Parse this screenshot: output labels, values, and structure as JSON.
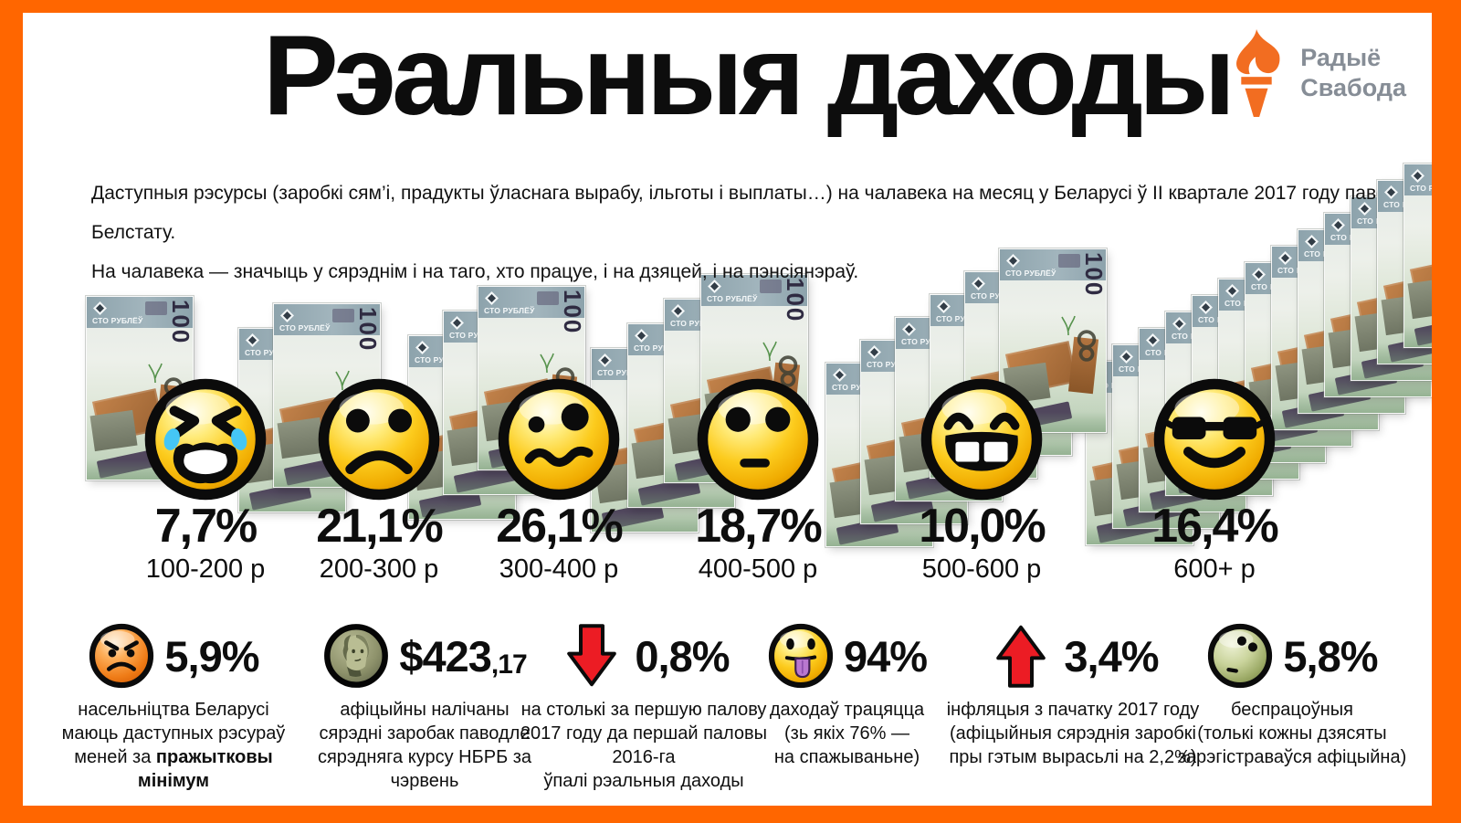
{
  "brand": {
    "line1": "Радыё",
    "line2": "Свабода",
    "torch_color": "#f26d21",
    "text_color": "#868d96"
  },
  "frame_color": "#ff6600",
  "header": {
    "title": "Рэальныя даходы"
  },
  "intro": {
    "line1": "Даступныя рэсурсы (заробкі сям’і, прадукты ўласнага вырабу, ільготы і выплаты…) на чалавека на месяц у Беларусі ў II квартале 2017 году паводле Белстату.",
    "line2": "На чалавека — значыць у сярэднім і на таго, хто працуе, і на дзяцей, і на пэнсіянэраў."
  },
  "banknote": {
    "denomination": "100",
    "label": "СТО РУБЛЁЎ"
  },
  "chart_data": {
    "type": "bar",
    "title": "Рэальныя даходы",
    "subtitle": [
      "Даступныя рэсурсы (заробкі сям’і, прадукты ўласнага вырабу, ільготы і выплаты…) на чалавека на месяц у Беларусі ў II квартале 2017 году паводле Белстату.",
      "На чалавека — значыць у сярэднім і на таго, хто працуе, і на дзяцей, і на пэнсіянэраў."
    ],
    "categories": [
      "100-200 р",
      "200-300 р",
      "300-400 р",
      "400-500 р",
      "500-600 р",
      "600+ р"
    ],
    "values": [
      7.7,
      21.1,
      26.1,
      18.7,
      10.0,
      16.4
    ],
    "value_labels": [
      "7,7%",
      "21,1%",
      "26,1%",
      "18,7%",
      "10,0%",
      "16,4%"
    ],
    "unit": "% насельніцтва",
    "grid": false,
    "legend": "none",
    "bar_glyph": "stack of 100-ruble banknotes"
  },
  "columns": [
    {
      "percent": "7,7%",
      "range": "100-200 р",
      "emoji": "crying",
      "banknotes": 1
    },
    {
      "percent": "21,1%",
      "range": "200-300 р",
      "emoji": "sad",
      "banknotes": 2
    },
    {
      "percent": "26,1%",
      "range": "300-400 р",
      "emoji": "confused",
      "banknotes": 3
    },
    {
      "percent": "18,7%",
      "range": "400-500 р",
      "emoji": "hushed",
      "banknotes": 4
    },
    {
      "percent": "10,0%",
      "range": "500-600 р",
      "emoji": "grinning",
      "banknotes": 6
    },
    {
      "percent": "16,4%",
      "range": "600+ р",
      "emoji": "cool",
      "banknotes": 13
    }
  ],
  "stats": [
    {
      "icon": "angry-face",
      "value": "5,9%",
      "lines": [
        "насельніцтва Беларусі",
        "маюць даступных рэсураў",
        {
          "prefix": "меней за ",
          "bold": "пражытковы мінімум"
        }
      ]
    },
    {
      "icon": "franklin-coin",
      "value": "$423",
      "value_small": ",17",
      "lines": [
        "афіцыйны налічаны",
        "сярэдні заробак паводле",
        "сярэдняга курсу НБРБ за чэрвень"
      ]
    },
    {
      "icon": "down-arrow",
      "value": "0,8%",
      "lines": [
        "на столькі за першую палову",
        "2017 году да першай паловы 2016-га",
        "ўпалі рэальныя даходы"
      ]
    },
    {
      "icon": "tongue-face",
      "value": "94%",
      "lines": [
        "даходаў трацяцца",
        "(зь якіх 76% —",
        "на спажываньне)"
      ]
    },
    {
      "icon": "up-arrow",
      "value": "3,4%",
      "lines": [
        "інфляцыя з пачатку 2017 году",
        "(афіцыйныя сярэднія заробкі",
        "пры гэтым вырасьлі на 2,2%)"
      ]
    },
    {
      "icon": "sick-face",
      "value": "5,8%",
      "lines": [
        "беспрацоўныя",
        "(толькі кожны дзясяты",
        "зарэгістраваўся афіцыйна)"
      ]
    }
  ]
}
